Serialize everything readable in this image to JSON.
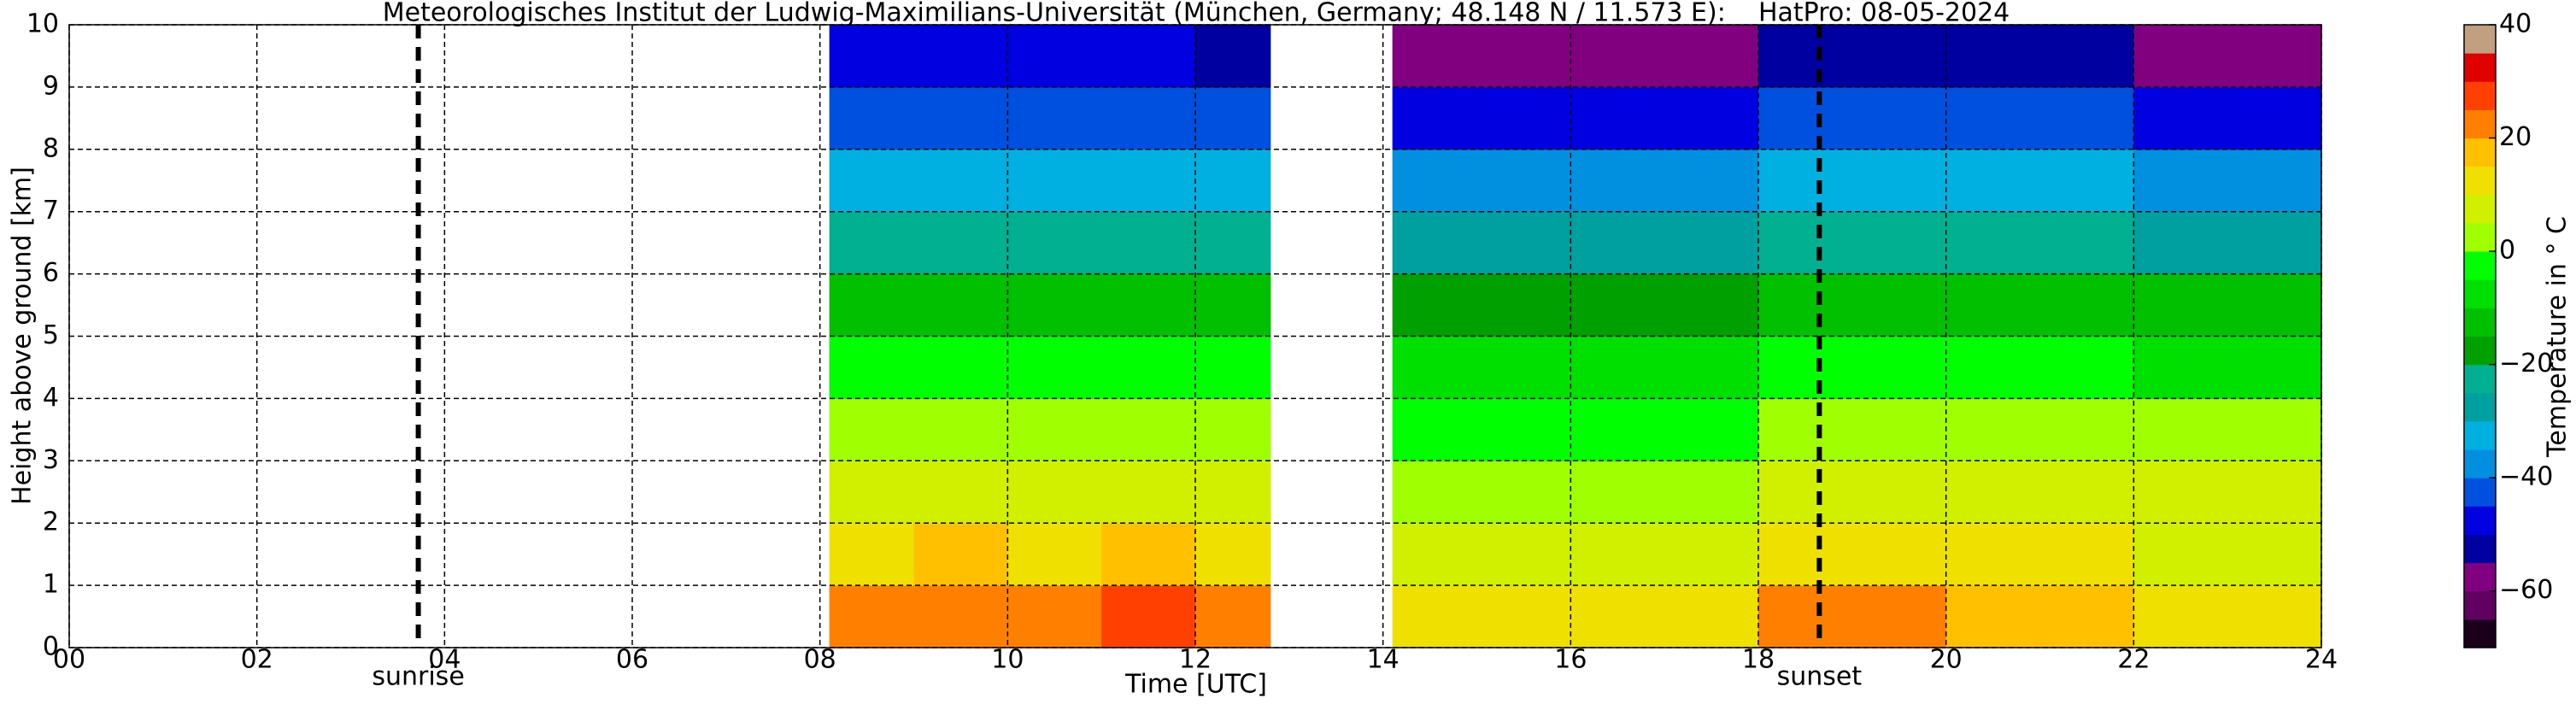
{
  "chart_data": {
    "type": "heatmap",
    "title": "Meteorologisches Institut der Ludwig-Maximilians-Universität (München, Germany; 48.148 N / 11.573 E):    HatPro: 08-05-2024",
    "x_label": "Time [UTC]",
    "y_label": "Height above ground [km]",
    "colorbar_label": "Temperature in ° C",
    "xlim": [
      0,
      24
    ],
    "xticks": [
      {
        "value": 0,
        "label": "00"
      },
      {
        "value": 2,
        "label": "02"
      },
      {
        "value": 4,
        "label": "04"
      },
      {
        "value": 6,
        "label": "06"
      },
      {
        "value": 8,
        "label": "08"
      },
      10,
      12,
      14,
      16,
      18,
      20,
      22,
      24
    ],
    "ylim": [
      0,
      10
    ],
    "yticks": [
      0,
      1,
      2,
      3,
      4,
      5,
      6,
      7,
      8,
      9,
      10
    ],
    "grid": true,
    "x_edges": [
      8.1,
      9,
      10,
      11,
      12,
      12.8,
      14.1,
      15,
      16,
      17,
      18,
      19,
      20,
      21,
      22,
      23,
      24
    ],
    "y_edges": [
      0,
      1,
      2,
      3,
      4,
      5,
      6,
      7,
      8,
      9,
      10
    ],
    "z": [
      [
        20,
        13,
        8,
        3,
        -3,
        -13,
        -24,
        -32,
        -42,
        -50
      ],
      [
        24,
        15,
        9,
        3,
        -3,
        -14,
        -24,
        -32,
        -42,
        -50
      ],
      [
        20,
        13,
        7,
        2,
        -3,
        -14,
        -24,
        -32,
        -42,
        -50
      ],
      [
        25,
        15,
        9,
        3,
        -2,
        -13,
        -23,
        -32,
        -42,
        -50
      ],
      [
        20,
        13,
        8,
        3,
        -3,
        -14,
        -25,
        -34,
        -45,
        -55
      ],
      null,
      [
        11,
        7,
        4,
        -1,
        -8,
        -17,
        -27,
        -37,
        -50,
        -58
      ],
      [
        11,
        7,
        4,
        -1,
        -8,
        -17,
        -27,
        -37,
        -50,
        -58
      ],
      [
        11,
        7,
        4,
        -1,
        -8,
        -17,
        -27,
        -37,
        -50,
        -58
      ],
      [
        12,
        7,
        4,
        -1,
        -7,
        -16,
        -27,
        -37,
        -50,
        -58
      ],
      [
        22,
        14,
        8,
        2,
        -4,
        -13,
        -24,
        -33,
        -45,
        -55
      ],
      [
        22,
        14,
        8,
        2,
        -4,
        -13,
        -24,
        -33,
        -45,
        -52
      ],
      [
        15,
        10,
        6,
        1,
        -5,
        -15,
        -25,
        -35,
        -45,
        -52
      ],
      [
        16,
        11,
        7,
        2,
        -4,
        -13,
        -25,
        -34,
        -45,
        -55
      ],
      [
        12,
        8,
        5,
        0,
        -6,
        -15,
        -26,
        -36,
        -48,
        -56
      ],
      [
        12,
        8,
        5,
        0,
        -6,
        -15,
        -26,
        -36,
        -48,
        -58
      ]
    ],
    "colorbar_lim": [
      -70,
      40
    ],
    "colorbar_ticks": [
      {
        "value": -60,
        "label": "−60"
      },
      {
        "value": -40,
        "label": "−40"
      },
      {
        "value": -20,
        "label": "−20"
      },
      0,
      20,
      40
    ],
    "colormap": {
      "bounds": [
        -70,
        -65,
        -60,
        -55,
        -50,
        -45,
        -40,
        -35,
        -30,
        -25,
        -20,
        -15,
        -10,
        -5,
        0,
        5,
        10,
        15,
        20,
        25,
        30,
        35,
        40
      ],
      "colors": [
        "#1a001a",
        "#600060",
        "#800080",
        "#0000a0",
        "#0000e0",
        "#0050e0",
        "#0090e0",
        "#00b0e0",
        "#00a0a0",
        "#00b090",
        "#00a000",
        "#00c000",
        "#00e000",
        "#00ff00",
        "#a0ff00",
        "#d0f000",
        "#f0e000",
        "#ffc000",
        "#ff8000",
        "#ff4000",
        "#e00000",
        "#c0a080"
      ]
    },
    "markers": [
      {
        "label": "sunrise",
        "x": 3.72
      },
      {
        "label": "sunset",
        "x": 18.65
      }
    ]
  }
}
